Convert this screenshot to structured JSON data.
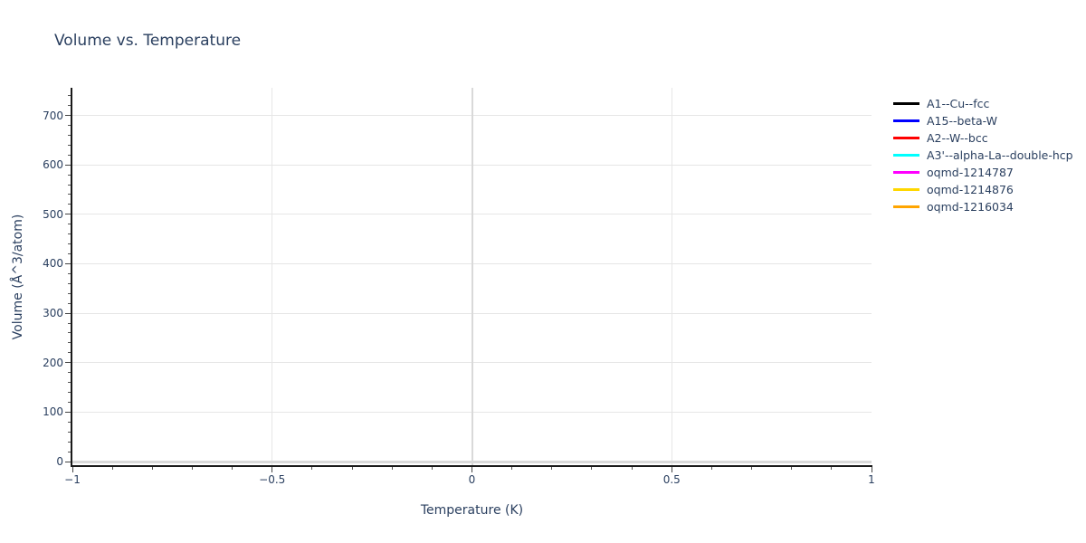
{
  "title": "Volume vs. Temperature",
  "colors": {
    "text": "#2a3f5f",
    "axis_line": "#1a1a1a",
    "tick": "#444444",
    "grid": "#e6e6e6",
    "zero_line": "#d9d9d9",
    "background": "#ffffff"
  },
  "chart_data": {
    "type": "line",
    "title": "Volume vs. Temperature",
    "xlabel": "Temperature (K)",
    "ylabel": "Volume (Å^3/atom)",
    "xlim": [
      -1,
      1
    ],
    "ylim": [
      -9,
      756
    ],
    "grid": true,
    "zero_lines": true,
    "legend_position": "outside-top-right",
    "x_ticks": [
      -1,
      -0.5,
      0,
      0.5,
      1
    ],
    "x_tick_labels": [
      "−1",
      "−0.5",
      "0",
      "0.5",
      "1"
    ],
    "x_minor_tick_step": 0.1,
    "y_ticks": [
      0,
      100,
      200,
      300,
      400,
      500,
      600,
      700
    ],
    "y_tick_labels": [
      "0",
      "100",
      "200",
      "300",
      "400",
      "500",
      "600",
      "700"
    ],
    "y_minor_tick_step": 20,
    "series": [
      {
        "name": "A1--Cu--fcc",
        "color": "#000000",
        "x": [],
        "y": []
      },
      {
        "name": "A15--beta-W",
        "color": "#0000ff",
        "x": [],
        "y": []
      },
      {
        "name": "A2--W--bcc",
        "color": "#ff0000",
        "x": [],
        "y": []
      },
      {
        "name": "A3'--alpha-La--double-hcp",
        "color": "#00ffff",
        "x": [],
        "y": []
      },
      {
        "name": "oqmd-1214787",
        "color": "#ff00ff",
        "x": [],
        "y": []
      },
      {
        "name": "oqmd-1214876",
        "color": "#ffd700",
        "x": [],
        "y": []
      },
      {
        "name": "oqmd-1216034",
        "color": "#ffa500",
        "x": [],
        "y": []
      }
    ]
  }
}
